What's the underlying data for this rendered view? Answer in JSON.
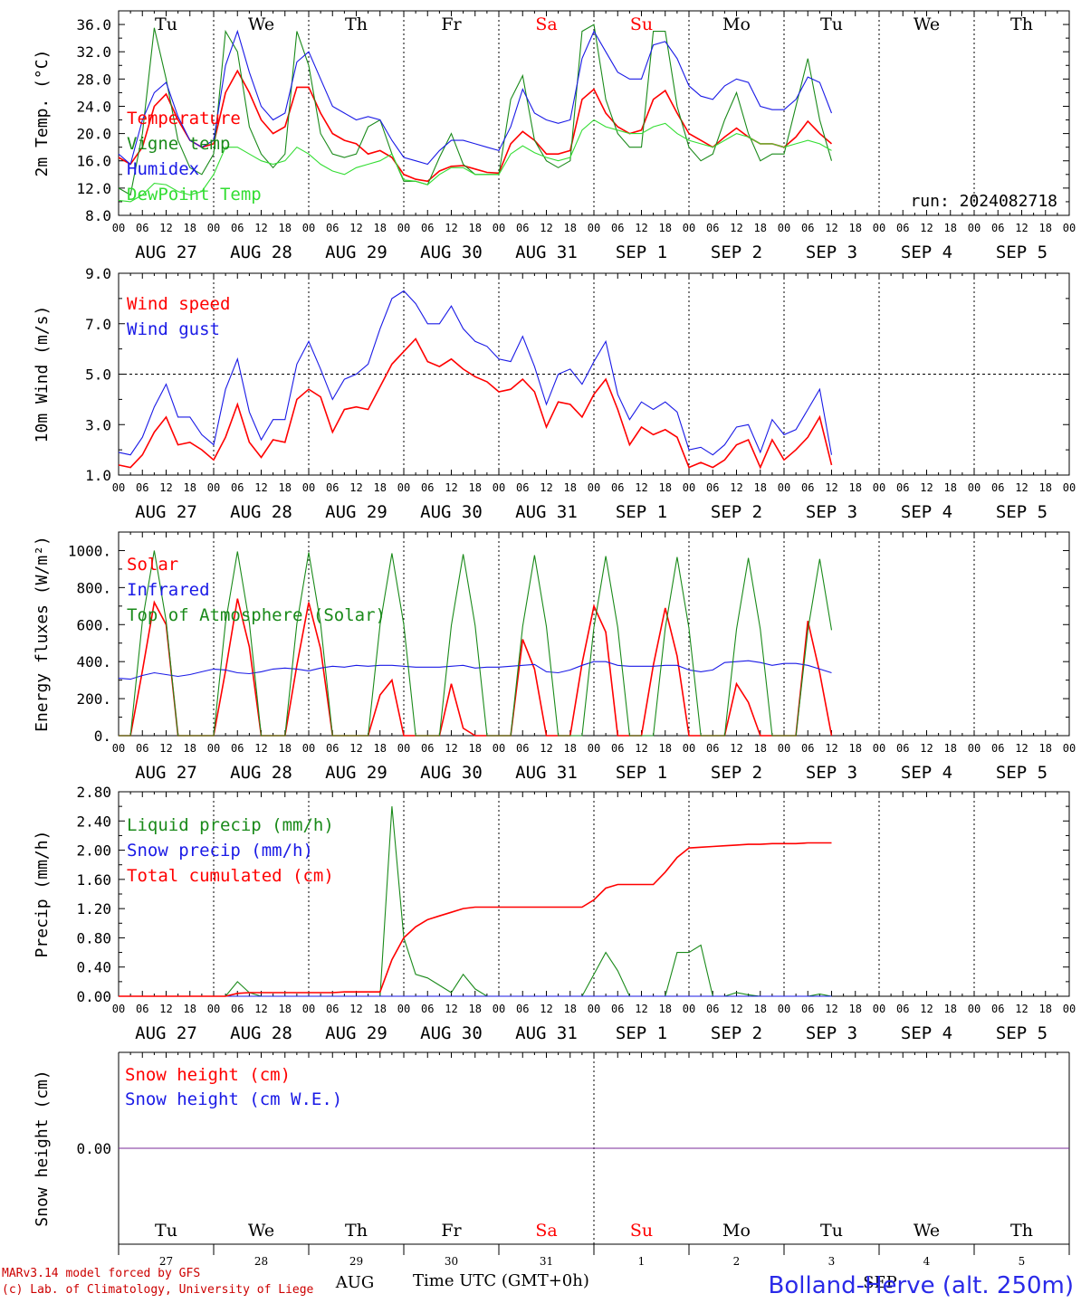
{
  "run_label": "run: 2024082718",
  "time_axis": {
    "tick_labels": [
      "00",
      "06",
      "12",
      "18"
    ],
    "date_labels": [
      "AUG 27",
      "AUG 28",
      "AUG 29",
      "AUG 30",
      "AUG 31",
      "SEP  1",
      "SEP  2",
      "SEP  3",
      "SEP  4",
      "SEP  5"
    ],
    "day_names": [
      "Tu",
      "We",
      "Th",
      "Fr",
      "Sa",
      "Su",
      "Mo",
      "Tu",
      "We",
      "Th"
    ],
    "weekend_days": [
      4,
      5
    ],
    "day_numbers": [
      "27",
      "28",
      "29",
      "30",
      "31",
      "1",
      "2",
      "3",
      "4",
      "5"
    ],
    "month_labels": [
      "AUG",
      "SEP"
    ],
    "title": "Time UTC (GMT+0h)"
  },
  "footer": {
    "credit_line1": "MARv3.14 model forced by GFS",
    "credit_line2": "(c) Lab. of Climatology, University of Liege",
    "station": "Bolland-Herve (alt. 250m)"
  },
  "colors": {
    "red": "#ff0000",
    "dark_green": "#1a8a1a",
    "blue": "#1a1ae6",
    "light_green": "#33dd33",
    "purple": "#7a2a9a"
  },
  "chart_data": [
    {
      "type": "line",
      "ylabel": "2m Temp. (°C)",
      "ylim": [
        8,
        38
      ],
      "yticks": [
        "8.0",
        "12.0",
        "16.0",
        "20.0",
        "24.0",
        "28.0",
        "32.0",
        "36.0"
      ],
      "ytick_values": [
        8,
        12,
        16,
        20,
        24,
        28,
        32,
        36
      ],
      "x_unit": "hours since 00 UTC AUG 27 (sampled every 3h)",
      "x_step": 3,
      "series": [
        {
          "name": "Temperature",
          "color": "red",
          "values": [
            16.5,
            15.5,
            18,
            24,
            25.8,
            22,
            19,
            18,
            18.5,
            26,
            29.2,
            26,
            22,
            20,
            21,
            26.8,
            26.8,
            23,
            20,
            19,
            18.5,
            17,
            17.5,
            16.5,
            14,
            13.3,
            13,
            14.5,
            15.2,
            15.3,
            14.8,
            14.3,
            14.2,
            18.5,
            20.3,
            19,
            17,
            17,
            17.5,
            25,
            26.5,
            23,
            21,
            20,
            20.5,
            25,
            26.3,
            23,
            20,
            19,
            18,
            19.5,
            20.8,
            19.5,
            18.5,
            18.5,
            18,
            19.5,
            21.8,
            20,
            18.5
          ]
        },
        {
          "name": "Vigne temp",
          "color": "dark_green",
          "values": [
            12,
            11,
            20,
            35.5,
            28,
            19,
            15,
            14,
            17,
            35,
            32,
            21,
            17,
            15,
            17,
            35,
            30,
            20,
            17,
            16.5,
            17,
            21,
            22,
            17,
            13,
            13,
            12.5,
            16.5,
            20,
            15.5,
            14,
            14,
            14,
            25,
            28.5,
            19,
            16,
            15,
            16,
            35,
            36,
            25,
            20,
            18,
            18,
            35,
            35,
            24,
            18,
            16,
            17,
            22,
            26,
            20,
            16,
            17,
            17,
            24,
            31,
            22,
            16
          ]
        },
        {
          "name": "Humidex",
          "color": "blue",
          "values": [
            17,
            15.5,
            22,
            26,
            27.5,
            22.5,
            19,
            18,
            19,
            30,
            35,
            29,
            24,
            22,
            23,
            30.5,
            32,
            28,
            24,
            23,
            22,
            22.5,
            22,
            19,
            16.5,
            16,
            15.5,
            17.5,
            19,
            19,
            18.5,
            18,
            17.5,
            21,
            26.5,
            23,
            22,
            21.5,
            22,
            31,
            35,
            32,
            29,
            28,
            28,
            33,
            33.5,
            31,
            27,
            25.5,
            25,
            27,
            28,
            27.5,
            24,
            23.5,
            23.5,
            25,
            28.3,
            27.5,
            23
          ]
        },
        {
          "name": "DewPoint Temp",
          "color": "light_green",
          "values": [
            10.2,
            10,
            11,
            12.7,
            12.5,
            11.5,
            11,
            11.5,
            14,
            18,
            18,
            17,
            16,
            15.5,
            16,
            18,
            17,
            15.5,
            14.5,
            14,
            15,
            15.5,
            16,
            17,
            13.2,
            13,
            12.5,
            14,
            15,
            15,
            14,
            14,
            14,
            17,
            18.2,
            17.2,
            16.5,
            16,
            16.5,
            20.5,
            22,
            21,
            20.5,
            20,
            20,
            21,
            21.5,
            20,
            19,
            18.5,
            18,
            19,
            20,
            19.5,
            18.5,
            18.5,
            18,
            18.5,
            19,
            18.5,
            17.5
          ]
        }
      ]
    },
    {
      "type": "line",
      "ylabel": "10m Wind (m/s)",
      "ylim": [
        1,
        9
      ],
      "yticks": [
        "1.0",
        "3.0",
        "5.0",
        "7.0",
        "9.0"
      ],
      "ytick_values": [
        1,
        3,
        5,
        7,
        9
      ],
      "reference_line": 5.0,
      "x_step": 3,
      "series": [
        {
          "name": "Wind speed",
          "color": "red",
          "values": [
            1.4,
            1.3,
            1.8,
            2.7,
            3.3,
            2.2,
            2.3,
            2.0,
            1.6,
            2.5,
            3.8,
            2.3,
            1.7,
            2.4,
            2.3,
            4.0,
            4.4,
            4.1,
            2.7,
            3.6,
            3.7,
            3.6,
            4.5,
            5.4,
            5.9,
            6.4,
            5.5,
            5.3,
            5.6,
            5.2,
            4.9,
            4.7,
            4.3,
            4.4,
            4.8,
            4.3,
            2.9,
            3.9,
            3.8,
            3.3,
            4.2,
            4.8,
            3.6,
            2.2,
            2.9,
            2.6,
            2.8,
            2.5,
            1.3,
            1.5,
            1.3,
            1.6,
            2.2,
            2.4,
            1.3,
            2.4,
            1.6,
            2.0,
            2.5,
            3.3,
            1.4
          ]
        },
        {
          "name": "Wind gust",
          "color": "blue",
          "values": [
            1.9,
            1.8,
            2.5,
            3.7,
            4.6,
            3.3,
            3.3,
            2.6,
            2.2,
            4.4,
            5.6,
            3.5,
            2.4,
            3.2,
            3.2,
            5.4,
            6.3,
            5.2,
            4.0,
            4.8,
            5.0,
            5.4,
            6.8,
            8.0,
            8.3,
            7.8,
            7.0,
            7.0,
            7.7,
            6.8,
            6.3,
            6.1,
            5.6,
            5.5,
            6.5,
            5.3,
            3.8,
            5.0,
            5.2,
            4.6,
            5.5,
            6.3,
            4.2,
            3.2,
            3.9,
            3.6,
            3.9,
            3.5,
            2.0,
            2.1,
            1.8,
            2.2,
            2.9,
            3.0,
            1.9,
            3.2,
            2.6,
            2.8,
            3.6,
            4.4,
            1.8
          ]
        }
      ]
    },
    {
      "type": "line",
      "ylabel": "Energy fluxes (W/m²)",
      "ylim": [
        0,
        1100
      ],
      "yticks": [
        "0.",
        "200.",
        "400.",
        "600.",
        "800.",
        "1000."
      ],
      "ytick_values": [
        0,
        200,
        400,
        600,
        800,
        1000
      ],
      "x_step": 3,
      "series": [
        {
          "name": "Solar",
          "color": "red",
          "values": [
            0,
            0,
            350,
            720,
            600,
            0,
            0,
            0,
            0,
            350,
            740,
            480,
            0,
            0,
            0,
            380,
            720,
            470,
            0,
            0,
            0,
            0,
            220,
            300,
            0,
            0,
            0,
            0,
            280,
            40,
            0,
            0,
            0,
            0,
            520,
            360,
            0,
            0,
            0,
            390,
            700,
            560,
            0,
            0,
            0,
            380,
            690,
            430,
            0,
            0,
            0,
            0,
            280,
            180,
            0,
            0,
            0,
            0,
            620,
            340,
            0
          ]
        },
        {
          "name": "Infrared",
          "color": "blue",
          "values": [
            310,
            305,
            325,
            340,
            330,
            320,
            330,
            345,
            360,
            355,
            340,
            335,
            345,
            360,
            365,
            360,
            350,
            365,
            375,
            370,
            380,
            375,
            380,
            380,
            375,
            370,
            370,
            370,
            375,
            380,
            365,
            370,
            370,
            375,
            380,
            385,
            345,
            340,
            355,
            380,
            400,
            400,
            380,
            375,
            375,
            375,
            380,
            380,
            355,
            345,
            355,
            395,
            400,
            405,
            395,
            380,
            390,
            390,
            380,
            360,
            340
          ]
        },
        {
          "name": "Top of Atmosphere (Solar)",
          "color": "dark_green",
          "values": [
            0,
            0,
            620,
            1000,
            620,
            0,
            0,
            0,
            0,
            610,
            995,
            610,
            0,
            0,
            0,
            605,
            990,
            605,
            0,
            0,
            0,
            0,
            600,
            985,
            600,
            0,
            0,
            0,
            595,
            980,
            595,
            0,
            0,
            0,
            590,
            975,
            590,
            0,
            0,
            0,
            585,
            970,
            585,
            0,
            0,
            0,
            580,
            965,
            580,
            0,
            0,
            0,
            575,
            960,
            575,
            0,
            0,
            0,
            570,
            955,
            570
          ]
        }
      ]
    },
    {
      "type": "line",
      "ylabel": "Precip (mm/h)",
      "ylim": [
        0,
        2.8
      ],
      "yticks": [
        "0.00",
        "0.40",
        "0.80",
        "1.20",
        "1.60",
        "2.00",
        "2.40",
        "2.80"
      ],
      "ytick_values": [
        0,
        0.4,
        0.8,
        1.2,
        1.6,
        2.0,
        2.4,
        2.8
      ],
      "x_step": 3,
      "series": [
        {
          "name": "Liquid precip (mm/h)",
          "color": "dark_green",
          "values": [
            0,
            0,
            0,
            0,
            0,
            0,
            0,
            0,
            0,
            0,
            0.2,
            0.05,
            0,
            0,
            0,
            0,
            0,
            0,
            0,
            0,
            0,
            0,
            0,
            2.6,
            0.8,
            0.3,
            0.25,
            0.15,
            0.05,
            0.3,
            0.1,
            0,
            0,
            0,
            0,
            0,
            0,
            0,
            0,
            0,
            0.3,
            0.6,
            0.35,
            0,
            0,
            0,
            0,
            0.6,
            0.6,
            0.7,
            0,
            0,
            0.05,
            0.02,
            0,
            0,
            0,
            0,
            0,
            0.03,
            0
          ]
        },
        {
          "name": "Snow precip (mm/h)",
          "color": "blue",
          "values": [
            0,
            0,
            0,
            0,
            0,
            0,
            0,
            0,
            0,
            0,
            0,
            0,
            0,
            0,
            0,
            0,
            0,
            0,
            0,
            0,
            0,
            0,
            0,
            0,
            0,
            0,
            0,
            0,
            0,
            0,
            0,
            0,
            0,
            0,
            0,
            0,
            0,
            0,
            0,
            0,
            0,
            0,
            0,
            0,
            0,
            0,
            0,
            0,
            0,
            0,
            0,
            0,
            0,
            0,
            0,
            0,
            0,
            0,
            0,
            0,
            0
          ]
        },
        {
          "name": "Total cumulated (cm)",
          "color": "red",
          "values": [
            0,
            0,
            0,
            0,
            0,
            0,
            0,
            0,
            0,
            0,
            0.04,
            0.05,
            0.05,
            0.05,
            0.05,
            0.05,
            0.05,
            0.05,
            0.05,
            0.06,
            0.06,
            0.06,
            0.06,
            0.5,
            0.8,
            0.95,
            1.05,
            1.1,
            1.15,
            1.2,
            1.22,
            1.22,
            1.22,
            1.22,
            1.22,
            1.22,
            1.22,
            1.22,
            1.22,
            1.22,
            1.32,
            1.48,
            1.53,
            1.53,
            1.53,
            1.53,
            1.7,
            1.9,
            2.03,
            2.04,
            2.05,
            2.06,
            2.07,
            2.08,
            2.08,
            2.09,
            2.09,
            2.09,
            2.1,
            2.1,
            2.1
          ]
        }
      ]
    },
    {
      "type": "line",
      "ylabel": "Snow height (cm)",
      "ylim": [
        -1,
        1
      ],
      "yticks": [
        "0.00"
      ],
      "ytick_values": [
        0
      ],
      "x_step": 3,
      "series": [
        {
          "name": "Snow height (cm)",
          "color": "red",
          "values": [
            0,
            0
          ]
        },
        {
          "name": "Snow height (cm W.E.)",
          "color": "blue",
          "values": [
            0,
            0
          ]
        }
      ]
    }
  ]
}
